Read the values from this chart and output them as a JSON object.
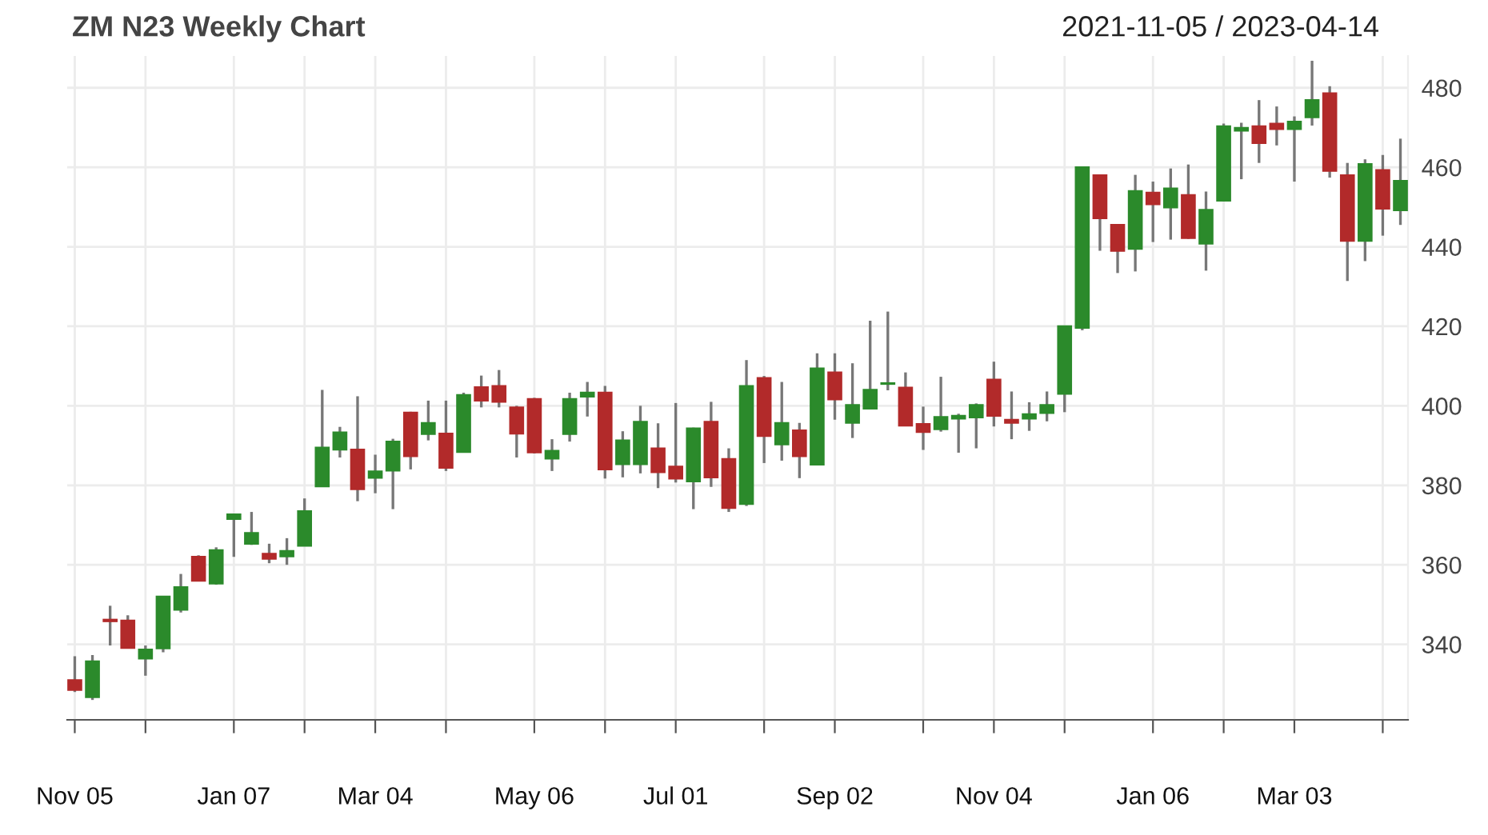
{
  "chart_data": {
    "type": "candlestick",
    "title": "ZM N23 Weekly Chart",
    "subtitle": "2021-11-05 / 2023-04-14",
    "x": [
      "2021-11-05",
      "2021-11-12",
      "2021-11-19",
      "2021-11-26",
      "2021-12-03",
      "2021-12-10",
      "2021-12-17",
      "2021-12-24",
      "2021-12-31",
      "2022-01-07",
      "2022-01-14",
      "2022-01-21",
      "2022-01-28",
      "2022-02-04",
      "2022-02-11",
      "2022-02-18",
      "2022-02-25",
      "2022-03-04",
      "2022-03-11",
      "2022-03-18",
      "2022-03-25",
      "2022-04-01",
      "2022-04-08",
      "2022-04-15",
      "2022-04-22",
      "2022-04-29",
      "2022-05-06",
      "2022-05-13",
      "2022-05-20",
      "2022-05-27",
      "2022-06-03",
      "2022-06-10",
      "2022-06-17",
      "2022-06-24",
      "2022-07-01",
      "2022-07-08",
      "2022-07-15",
      "2022-07-22",
      "2022-07-29",
      "2022-08-05",
      "2022-08-12",
      "2022-08-19",
      "2022-08-26",
      "2022-09-02",
      "2022-09-09",
      "2022-09-16",
      "2022-09-23",
      "2022-09-30",
      "2022-10-07",
      "2022-10-14",
      "2022-10-21",
      "2022-10-28",
      "2022-11-04",
      "2022-11-11",
      "2022-11-18",
      "2022-11-25",
      "2022-12-02",
      "2022-12-09",
      "2022-12-16",
      "2022-12-23",
      "2022-12-30",
      "2023-01-06",
      "2023-01-13",
      "2023-01-20",
      "2023-01-27",
      "2023-02-03",
      "2023-02-10",
      "2023-02-17",
      "2023-02-24",
      "2023-03-03",
      "2023-03-10",
      "2023-03-17",
      "2023-03-24",
      "2023-03-31",
      "2023-04-07",
      "2023-04-14"
    ],
    "ohlc": [
      [
        331,
        337,
        328,
        328.5
      ],
      [
        326.7,
        337.3,
        326,
        335.7
      ],
      [
        346.2,
        349.7,
        339.7,
        345.8
      ],
      [
        346,
        347.3,
        339,
        339.1
      ],
      [
        336.4,
        339.7,
        332.1,
        338.7
      ],
      [
        339,
        352,
        338,
        352
      ],
      [
        348.7,
        357.7,
        348,
        354.4
      ],
      [
        362,
        362.4,
        356,
        356
      ],
      [
        355.3,
        364.4,
        355,
        363.7
      ],
      [
        371.5,
        372.8,
        362,
        372.7
      ],
      [
        365.3,
        373.3,
        365,
        368
      ],
      [
        362.8,
        365.3,
        360.4,
        361.5
      ],
      [
        362.1,
        366.7,
        360,
        363.5
      ],
      [
        364.8,
        376.7,
        364.8,
        373.5
      ],
      [
        379.7,
        404,
        379.7,
        389.5
      ],
      [
        389,
        394.7,
        387,
        393.3
      ],
      [
        389,
        402.4,
        376,
        379
      ],
      [
        381.9,
        387.7,
        378,
        383.5
      ],
      [
        383.7,
        391.7,
        374,
        391
      ],
      [
        398.3,
        398.5,
        384,
        387.3
      ],
      [
        392.9,
        401.3,
        391.3,
        395.7
      ],
      [
        393,
        401.3,
        383.6,
        384.4
      ],
      [
        388.4,
        403.3,
        388.4,
        402.7
      ],
      [
        404.7,
        407.6,
        399.6,
        401.3
      ],
      [
        405,
        409,
        399.6,
        401
      ],
      [
        399.6,
        400,
        387,
        393
      ],
      [
        401.7,
        402,
        388,
        388.3
      ],
      [
        386.7,
        391.6,
        383.6,
        388.7
      ],
      [
        392.9,
        403.3,
        391,
        401.7
      ],
      [
        402.3,
        406,
        397.3,
        403.3
      ],
      [
        403.3,
        405,
        381.7,
        384
      ],
      [
        385.3,
        393.6,
        382,
        391.3
      ],
      [
        385.3,
        400,
        383,
        396
      ],
      [
        389.3,
        395.6,
        379.3,
        383.3
      ],
      [
        384.7,
        400.7,
        380.7,
        381.7
      ],
      [
        381,
        394.5,
        374,
        394.3
      ],
      [
        396,
        401,
        379.6,
        382
      ],
      [
        386.6,
        389.3,
        373.3,
        374.3
      ],
      [
        375.3,
        411.5,
        374.8,
        405
      ],
      [
        407,
        407.5,
        385.6,
        392.4
      ],
      [
        390.3,
        406,
        386.2,
        395.7
      ],
      [
        393.8,
        395.7,
        381.8,
        387.3
      ],
      [
        385.2,
        413.2,
        385,
        409.4
      ],
      [
        408.4,
        413.2,
        396.5,
        401.6
      ],
      [
        395.7,
        410.7,
        391.9,
        400.2
      ],
      [
        399.3,
        421.4,
        399.3,
        404
      ],
      [
        405.5,
        423.7,
        403.9,
        405.7
      ],
      [
        404.6,
        408.4,
        395,
        395
      ],
      [
        395.4,
        399.8,
        388.9,
        393.4
      ],
      [
        394.1,
        407.3,
        393.5,
        397.2
      ],
      [
        396.8,
        398,
        388.2,
        397.5
      ],
      [
        397.1,
        400.6,
        389.3,
        400.2
      ],
      [
        406.6,
        411.1,
        394.8,
        397.5
      ],
      [
        396.5,
        403.6,
        391.6,
        395.7
      ],
      [
        396.8,
        400.9,
        393.7,
        397.9
      ],
      [
        398.2,
        403.6,
        396.1,
        400.2
      ],
      [
        403,
        420,
        398.4,
        420
      ],
      [
        419.6,
        460,
        419,
        460
      ],
      [
        458,
        458,
        439,
        447.2
      ],
      [
        445.5,
        445.5,
        433.4,
        439
      ],
      [
        439.5,
        458.1,
        433.8,
        454
      ],
      [
        453.6,
        456.4,
        441.2,
        450.7
      ],
      [
        449.9,
        459.7,
        441.8,
        454.7
      ],
      [
        453,
        460.7,
        442,
        442.2
      ],
      [
        440.8,
        453.9,
        434,
        449.3
      ],
      [
        451.6,
        471,
        451.6,
        470.3
      ],
      [
        469.2,
        471.2,
        457,
        469.9
      ],
      [
        470.3,
        476.9,
        461.1,
        466.1
      ],
      [
        471,
        475.3,
        465.5,
        469.6
      ],
      [
        469.6,
        472.8,
        456.4,
        471.5
      ],
      [
        472.6,
        486.8,
        470.5,
        476.9
      ],
      [
        478.6,
        480.4,
        457.4,
        459.1
      ],
      [
        458,
        461.1,
        431.4,
        441.5
      ],
      [
        441.5,
        462,
        436.4,
        460.8
      ],
      [
        459.3,
        463.1,
        442.8,
        449.6
      ],
      [
        449.2,
        467.2,
        445.5,
        456.6
      ]
    ],
    "colors": [
      "#b22a2a",
      "#2b8a2b",
      "#b22a2a",
      "#b22a2a",
      "#2b8a2b",
      "#2b8a2b",
      "#2b8a2b",
      "#b22a2a",
      "#2b8a2b",
      "#2b8a2b",
      "#2b8a2b",
      "#b22a2a",
      "#2b8a2b",
      "#2b8a2b",
      "#2b8a2b",
      "#2b8a2b",
      "#b22a2a",
      "#2b8a2b",
      "#2b8a2b",
      "#b22a2a",
      "#2b8a2b",
      "#b22a2a",
      "#2b8a2b",
      "#b22a2a",
      "#b22a2a",
      "#b22a2a",
      "#b22a2a",
      "#2b8a2b",
      "#2b8a2b",
      "#2b8a2b",
      "#b22a2a",
      "#2b8a2b",
      "#2b8a2b",
      "#b22a2a",
      "#b22a2a",
      "#2b8a2b",
      "#b22a2a",
      "#b22a2a",
      "#2b8a2b",
      "#b22a2a",
      "#2b8a2b",
      "#b22a2a",
      "#2b8a2b",
      "#b22a2a",
      "#2b8a2b",
      "#2b8a2b",
      "#2b8a2b",
      "#b22a2a",
      "#b22a2a",
      "#2b8a2b",
      "#2b8a2b",
      "#2b8a2b",
      "#b22a2a",
      "#b22a2a",
      "#2b8a2b",
      "#2b8a2b",
      "#2b8a2b",
      "#2b8a2b",
      "#b22a2a",
      "#b22a2a",
      "#2b8a2b",
      "#b22a2a",
      "#2b8a2b",
      "#b22a2a",
      "#2b8a2b",
      "#2b8a2b",
      "#2b8a2b",
      "#b22a2a",
      "#b22a2a",
      "#2b8a2b",
      "#2b8a2b",
      "#b22a2a",
      "#b22a2a",
      "#2b8a2b",
      "#b22a2a",
      "#2b8a2b"
    ],
    "xlim": [
      "2021-11-02",
      "2023-04-17"
    ],
    "ylim": [
      321,
      488
    ],
    "xticks": [
      {
        "value": "2021-11-05",
        "label": "Nov 05"
      },
      {
        "value": "2021-12-03",
        "label": null
      },
      {
        "value": "2022-01-07",
        "label": "Jan 07"
      },
      {
        "value": "2022-02-04",
        "label": null
      },
      {
        "value": "2022-03-04",
        "label": "Mar 04"
      },
      {
        "value": "2022-04-01",
        "label": null
      },
      {
        "value": "2022-05-06",
        "label": "May 06"
      },
      {
        "value": "2022-06-03",
        "label": null
      },
      {
        "value": "2022-07-01",
        "label": "Jul 01"
      },
      {
        "value": "2022-08-05",
        "label": null
      },
      {
        "value": "2022-09-02",
        "label": "Sep 02"
      },
      {
        "value": "2022-10-07",
        "label": null
      },
      {
        "value": "2022-11-04",
        "label": "Nov 04"
      },
      {
        "value": "2022-12-02",
        "label": null
      },
      {
        "value": "2023-01-06",
        "label": "Jan 06"
      },
      {
        "value": "2023-02-03",
        "label": null
      },
      {
        "value": "2023-03-03",
        "label": "Mar 03"
      },
      {
        "value": "2023-04-07",
        "label": null
      }
    ],
    "yticks": [
      340,
      360,
      380,
      400,
      420,
      440,
      460,
      480
    ],
    "grid": true
  }
}
